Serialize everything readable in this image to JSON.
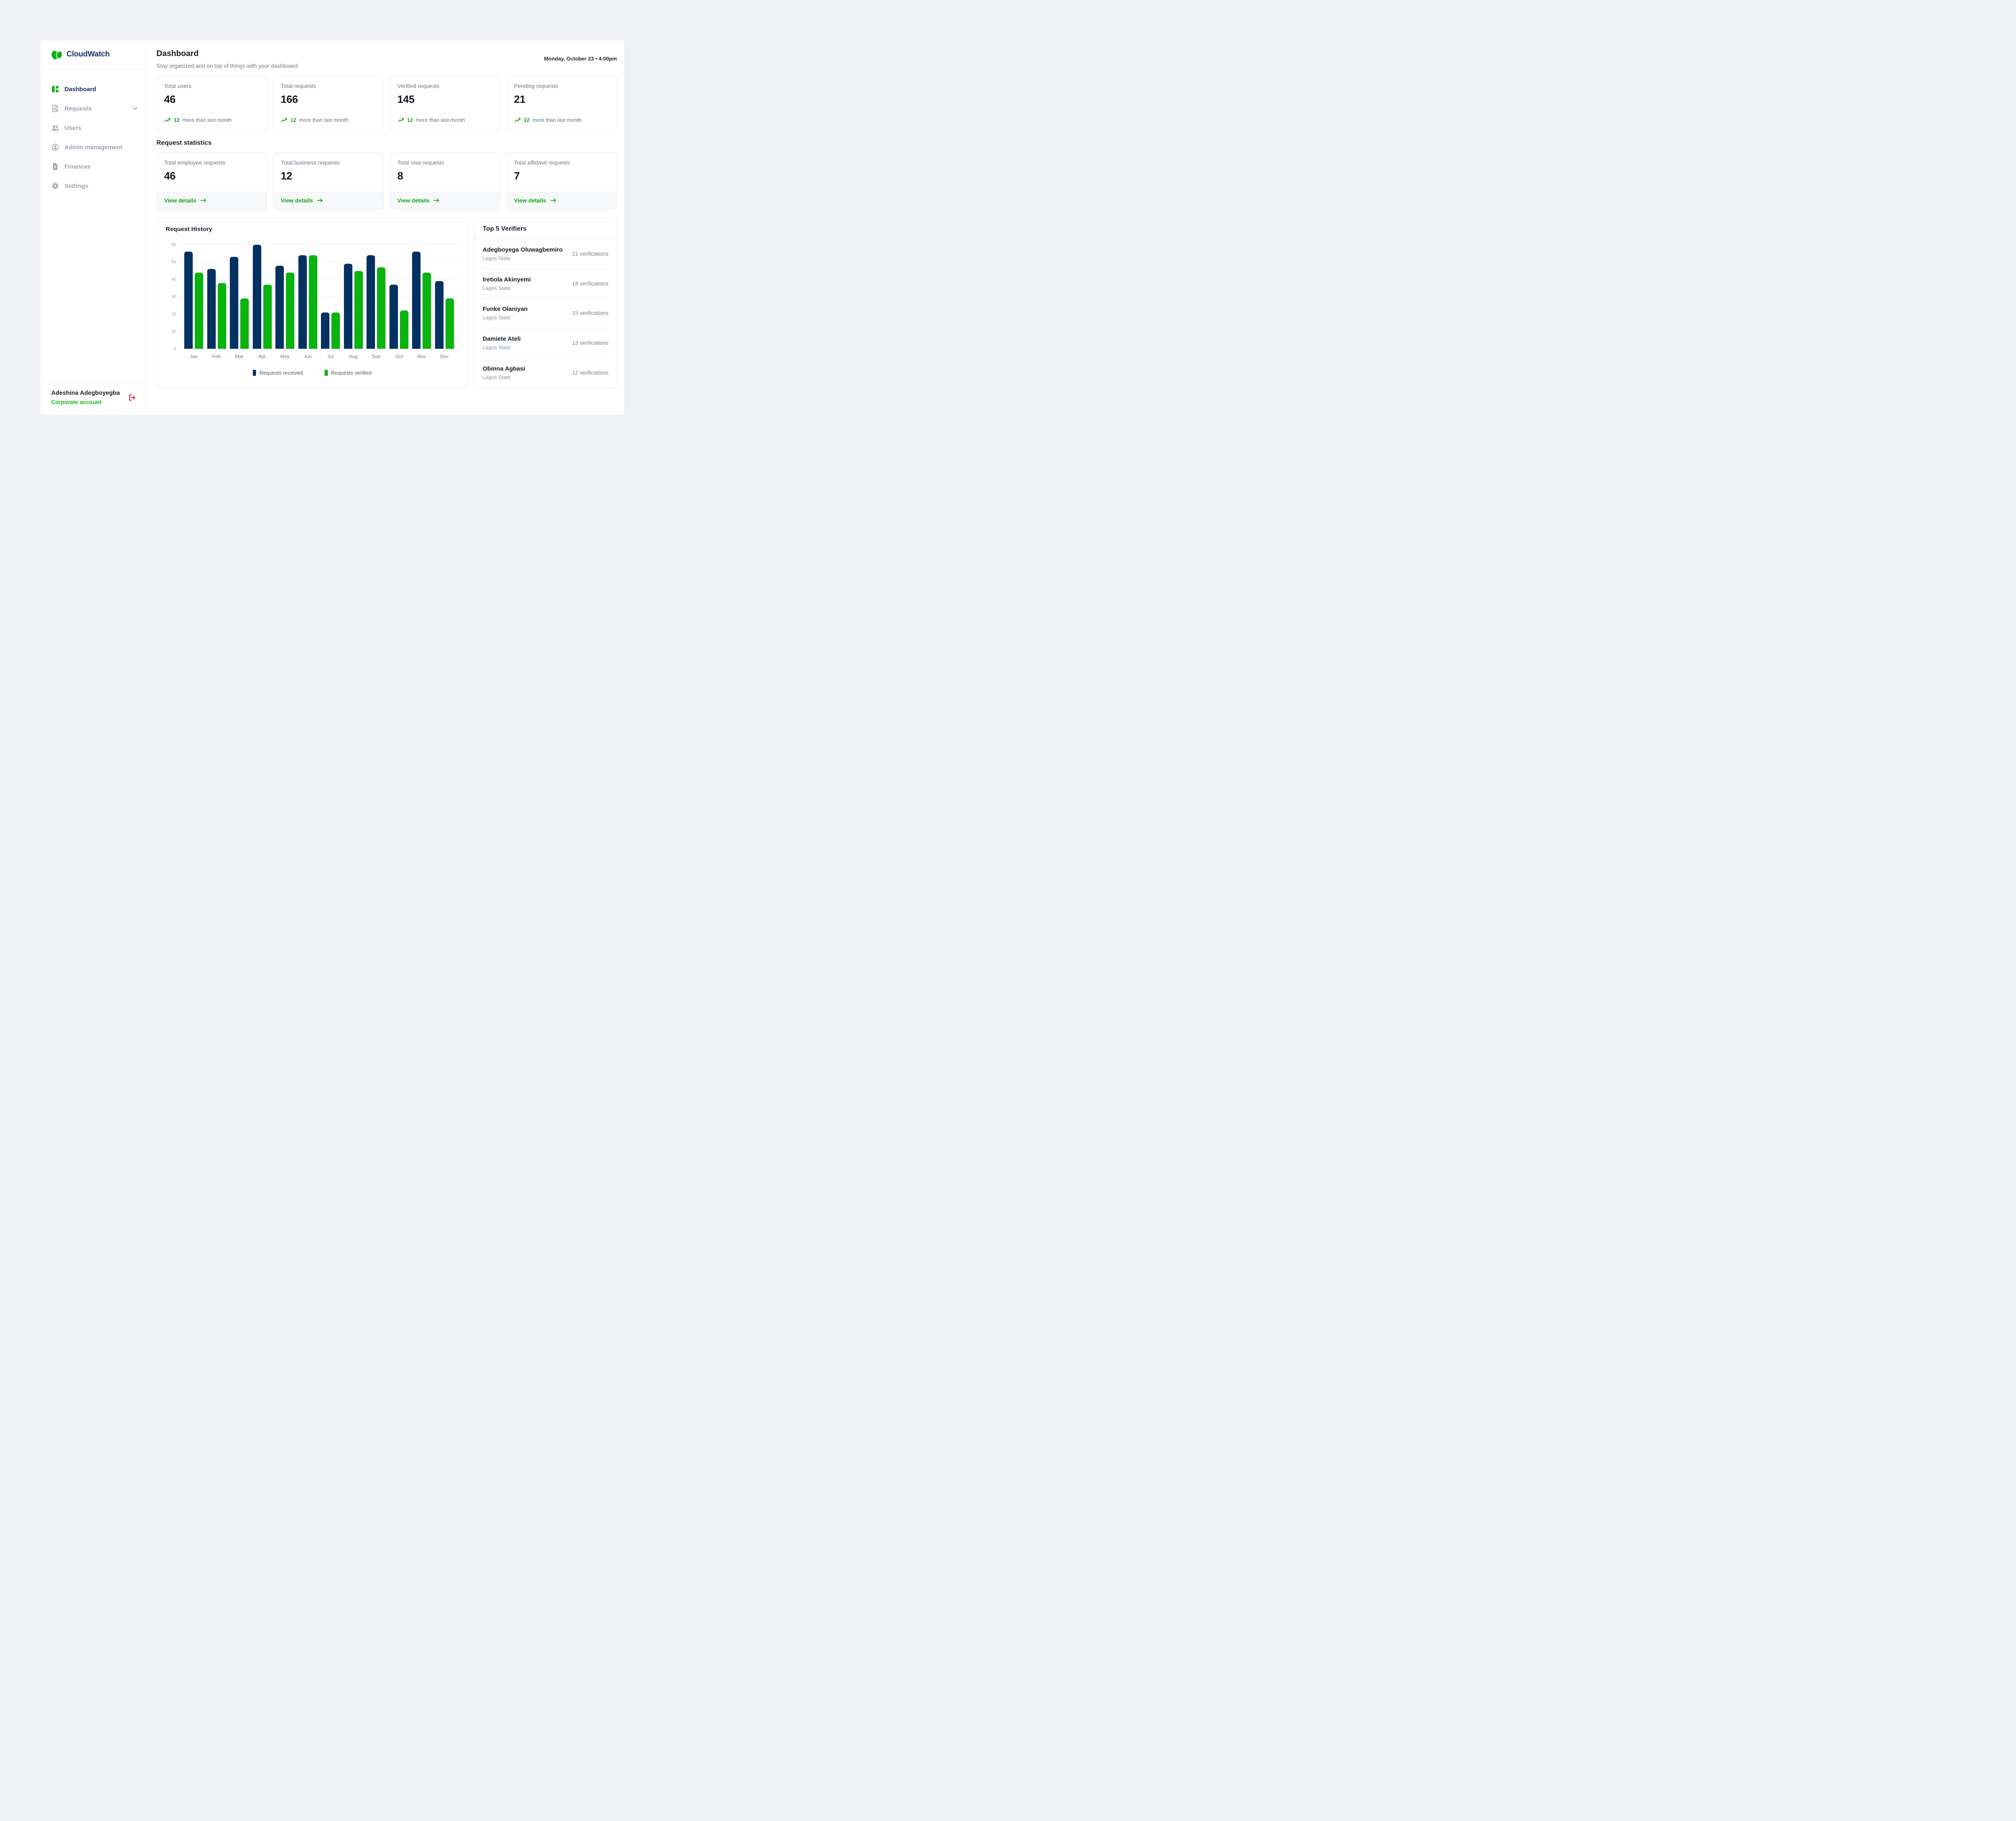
{
  "brand": {
    "name": "CloudWatch",
    "logo_icon": "cloud-logo-icon",
    "navy": "#1a3568",
    "green": "#0db314"
  },
  "header": {
    "title": "Dashboard",
    "subtitle": "Stay organized and on top of things with your dashboard",
    "datetime": "Monday, October 23 • 4:00pm"
  },
  "sidebar": {
    "items": [
      {
        "label": "Dashboard",
        "icon": "dashboard-icon",
        "active": true
      },
      {
        "label": "Requests",
        "icon": "requests-icon",
        "chevron": "chevron-down-icon"
      },
      {
        "label": "Users",
        "icon": "users-icon"
      },
      {
        "label": "Admin management",
        "icon": "admin-icon"
      },
      {
        "label": "Finances",
        "icon": "finances-icon"
      },
      {
        "label": "Settings",
        "icon": "settings-icon"
      }
    ],
    "user": {
      "name": "Adeshina Adegboyegba",
      "account_type": "Corporate account",
      "logout_icon": "logout-icon"
    }
  },
  "summary_cards": [
    {
      "label": "Total users",
      "value": "46",
      "delta": "12",
      "delta_text": "more than last month",
      "trend_icon": "trending-up-icon"
    },
    {
      "label": "Total requests",
      "value": "166",
      "delta": "12",
      "delta_text": "more than last month",
      "trend_icon": "trending-up-icon"
    },
    {
      "label": "Verified requests",
      "value": "145",
      "delta": "12",
      "delta_text": "more than last month",
      "trend_icon": "trending-up-icon"
    },
    {
      "label": "Pending requests",
      "value": "21",
      "delta": "12",
      "delta_text": "more than last month",
      "trend_icon": "trending-up-icon"
    }
  ],
  "request_statistics": {
    "heading": "Request statistics",
    "cards": [
      {
        "label": "Total employee requests",
        "value": "46",
        "link_label": "View details",
        "link_icon": "arrow-right-icon"
      },
      {
        "label": "Total business requests",
        "value": "12",
        "link_label": "View details",
        "link_icon": "arrow-right-icon"
      },
      {
        "label": "Total visa requests",
        "value": "8",
        "link_label": "View details",
        "link_icon": "arrow-right-icon"
      },
      {
        "label": "Total affidavit requests",
        "value": "7",
        "link_label": "View details",
        "link_icon": "arrow-right-icon"
      }
    ]
  },
  "chart_data": {
    "type": "bar",
    "title": "Request History",
    "categories": [
      "Jan",
      "Feb",
      "Mar",
      "Apr",
      "May",
      "Jun",
      "Jul",
      "Aug",
      "Sep",
      "Oct",
      "Nov",
      "Dec"
    ],
    "series": [
      {
        "name": "Requests received",
        "color": "#053162",
        "values": [
          56,
          46,
          53,
          60,
          48,
          54,
          21,
          49,
          54,
          37,
          56,
          39
        ]
      },
      {
        "name": "Requests verified",
        "color": "#0ab30e",
        "values": [
          44,
          38,
          29,
          37,
          44,
          54,
          21,
          45,
          47,
          22,
          44,
          29
        ]
      }
    ],
    "xlabel": "",
    "ylabel": "",
    "ylim": [
      0,
      60
    ],
    "yticks": [
      0,
      10,
      20,
      30,
      40,
      50,
      60
    ],
    "grid": "horizontal-dashed",
    "legend_position": "bottom"
  },
  "verifiers": {
    "heading": "Top 5 Verifiers",
    "items": [
      {
        "name": "Adegboyega Oluwagbemiro",
        "location": "Lagos State",
        "verifications": "21 verifications"
      },
      {
        "name": "Iretiola Akinyemi",
        "location": "Lagos State",
        "verifications": "18 verifications"
      },
      {
        "name": "Funke Olaniyan",
        "location": "Lagos State",
        "verifications": "15 verifications"
      },
      {
        "name": "Damiete Ateli",
        "location": "Lagos State",
        "verifications": "13 verifications"
      },
      {
        "name": "Obinna Agbasi",
        "location": "Lagos State",
        "verifications": "12 verifications"
      }
    ]
  }
}
